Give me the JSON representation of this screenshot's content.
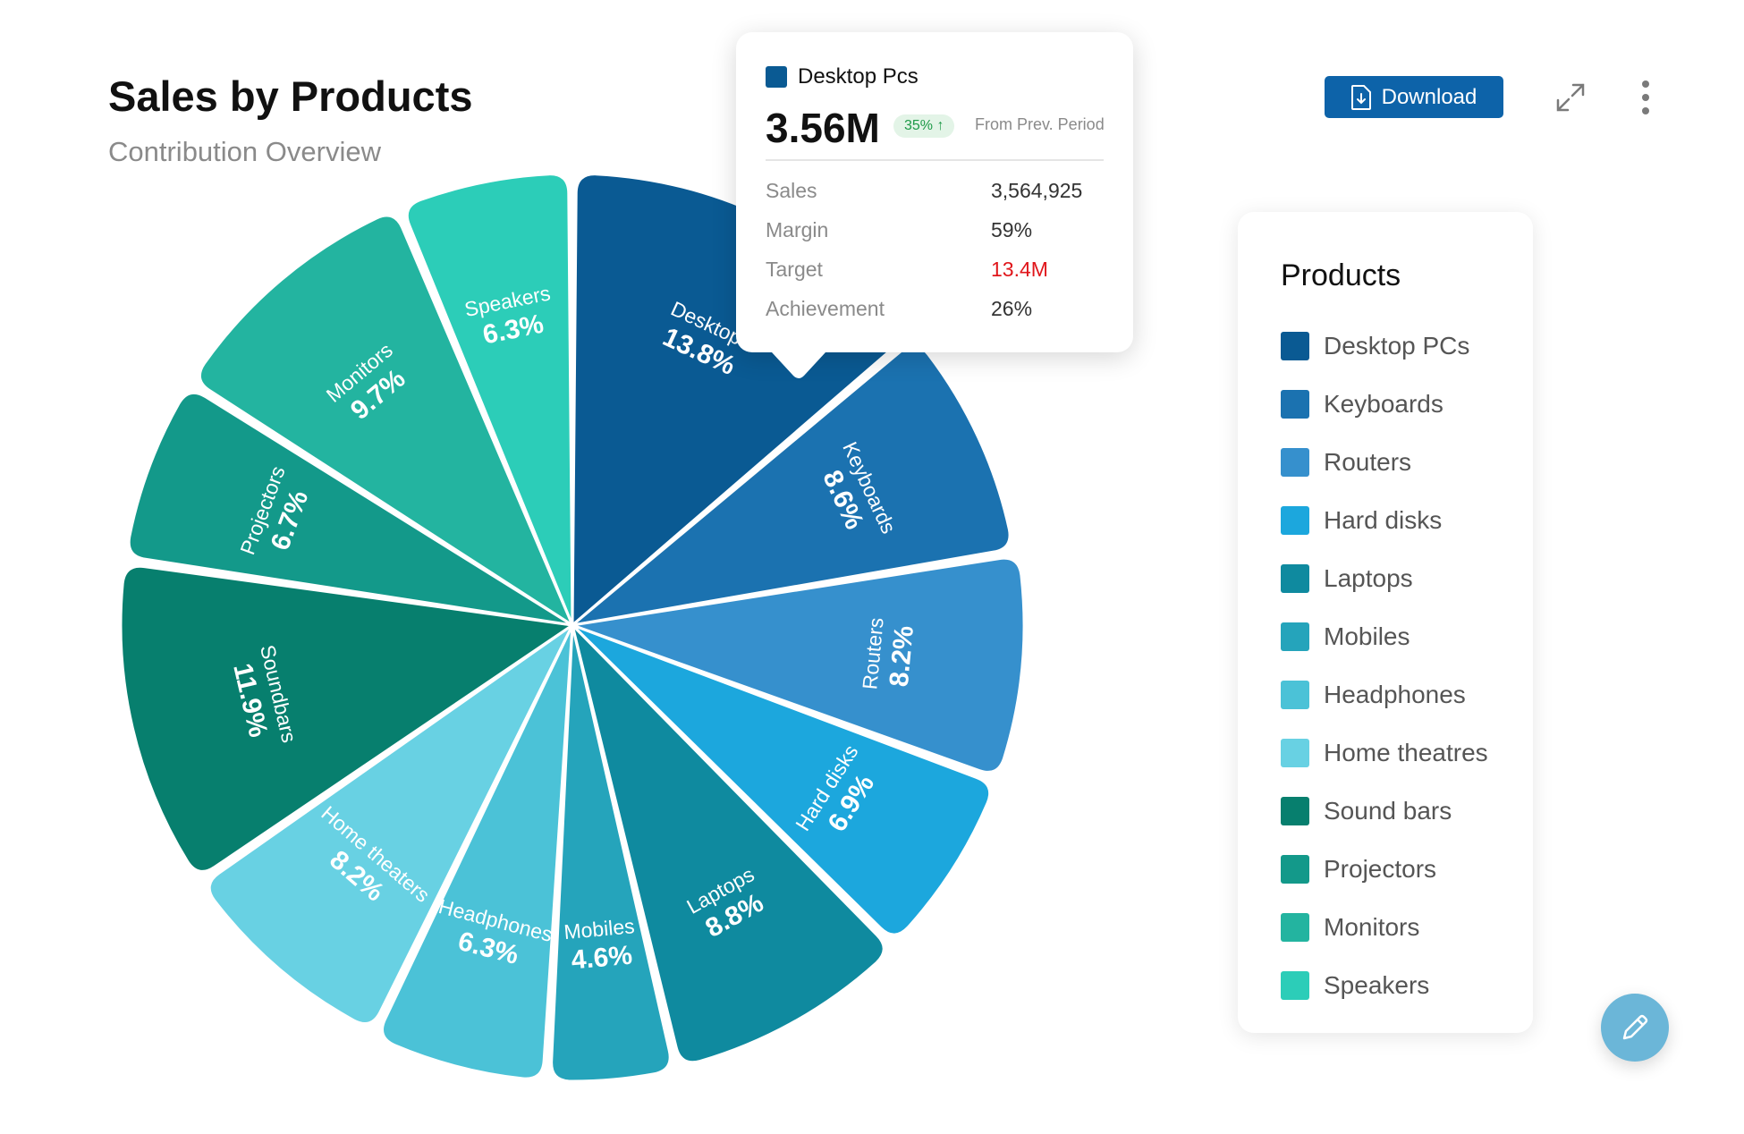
{
  "header": {
    "title": "Sales by Products",
    "subtitle": "Contribution Overview",
    "download_label": "Download",
    "download_icon": "file-download-icon",
    "expand_icon": "expand-icon",
    "more_icon": "more-vertical-icon"
  },
  "chart_data": {
    "type": "pie",
    "style": "variable-radius rounded wedges",
    "slices": [
      {
        "label": "Desktops",
        "value": 13.8,
        "value_label": "13.8%",
        "color": "#0a5a93"
      },
      {
        "label": "Keyboards",
        "value": 8.6,
        "value_label": "8.6%",
        "color": "#1b72b0"
      },
      {
        "label": "Routers",
        "value": 8.2,
        "value_label": "8.2%",
        "color": "#3690cd"
      },
      {
        "label": "Hard disks",
        "value": 6.9,
        "value_label": "6.9%",
        "color": "#1ca7dd"
      },
      {
        "label": "Laptops",
        "value": 8.8,
        "value_label": "8.8%",
        "color": "#0f8a9f"
      },
      {
        "label": "Mobiles",
        "value": 4.6,
        "value_label": "4.6%",
        "color": "#25a4bb"
      },
      {
        "label": "Headphones",
        "value": 6.3,
        "value_label": "6.3%",
        "color": "#4bc2d7"
      },
      {
        "label": "Home theaters",
        "value": 8.2,
        "value_label": "8.2%",
        "color": "#68d1e3"
      },
      {
        "label": "Soundbars",
        "value": 11.9,
        "value_label": "11.9%",
        "color": "#077f6e"
      },
      {
        "label": "Projectors",
        "value": 6.7,
        "value_label": "6.7%",
        "color": "#13998a"
      },
      {
        "label": "Monitors",
        "value": 9.7,
        "value_label": "9.7%",
        "color": "#23b4a0"
      },
      {
        "label": "Speakers",
        "value": 6.3,
        "value_label": "6.3%",
        "color": "#2ccdb8"
      }
    ]
  },
  "tooltip": {
    "name": "Desktop Pcs",
    "swatch_color": "#0a5a93",
    "value": "3.56M",
    "change": "35% ↑",
    "change_note": "From Prev. Period",
    "rows": [
      {
        "label": "Sales",
        "value": "3,564,925",
        "color": "#333333"
      },
      {
        "label": "Margin",
        "value": "59%",
        "color": "#333333"
      },
      {
        "label": "Target",
        "value": "13.4M",
        "color": "#e0161b"
      },
      {
        "label": "Achievement",
        "value": "26%",
        "color": "#333333"
      }
    ]
  },
  "legend": {
    "title": "Products",
    "items": [
      {
        "label": "Desktop PCs",
        "color": "#0a5a93"
      },
      {
        "label": "Keyboards",
        "color": "#1b72b0"
      },
      {
        "label": "Routers",
        "color": "#3690cd"
      },
      {
        "label": "Hard disks",
        "color": "#1ca7dd"
      },
      {
        "label": "Laptops",
        "color": "#0f8a9f"
      },
      {
        "label": "Mobiles",
        "color": "#25a4bb"
      },
      {
        "label": "Headphones",
        "color": "#4bc2d7"
      },
      {
        "label": "Home theatres",
        "color": "#68d1e3"
      },
      {
        "label": "Sound bars",
        "color": "#077f6e"
      },
      {
        "label": "Projectors",
        "color": "#13998a"
      },
      {
        "label": "Monitors",
        "color": "#23b4a0"
      },
      {
        "label": "Speakers",
        "color": "#2ccdb8"
      }
    ]
  },
  "fab": {
    "icon": "pencil-icon"
  }
}
